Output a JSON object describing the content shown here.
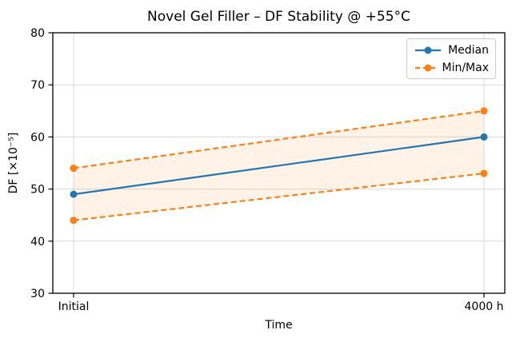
{
  "chart_data": {
    "type": "line",
    "title": "Novel Gel Filler – DF Stability @ +55°C",
    "xlabel": "Time",
    "ylabel": "DF [×10⁻⁵]",
    "categories": [
      "Initial",
      "4000 h"
    ],
    "ylim": [
      30,
      80
    ],
    "y_ticks": [
      30,
      40,
      50,
      60,
      70,
      80
    ],
    "grid": true,
    "grid_color": "#d9d9d9",
    "series": [
      {
        "name": "Median",
        "values": [
          49,
          60
        ],
        "color": "#1f77b4",
        "style": "solid",
        "marker": "circle"
      },
      {
        "name": "Max",
        "values": [
          54,
          65
        ],
        "color": "#ff7f0e",
        "style": "dashed",
        "marker": "circle"
      },
      {
        "name": "Min",
        "values": [
          44,
          53
        ],
        "color": "#ff7f0e",
        "style": "dashed",
        "marker": "circle"
      }
    ],
    "fill_between": {
      "upper": "Max",
      "lower": "Min",
      "color": "#ff7f0e",
      "opacity": 0.1
    },
    "legend": {
      "position": "upper right",
      "entries": [
        {
          "label": "Median",
          "color": "#1f77b4",
          "style": "solid"
        },
        {
          "label": "Min/Max",
          "color": "#ff7f0e",
          "style": "dashed"
        }
      ]
    }
  }
}
